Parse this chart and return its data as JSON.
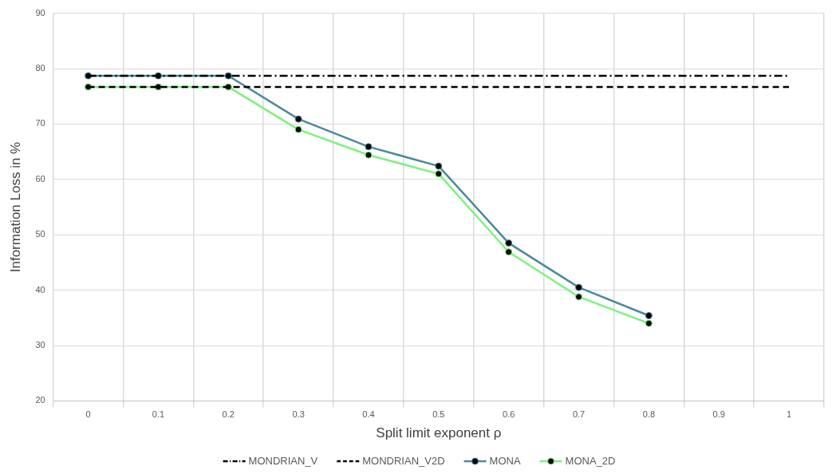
{
  "chart_data": {
    "type": "line",
    "xlabel": "Split limit exponent ρ",
    "ylabel": "Information Loss in %",
    "categories": [
      "0",
      "0.1",
      "0.2",
      "0.3",
      "0.4",
      "0.5",
      "0.6",
      "0.7",
      "0.8",
      "0.9",
      "1"
    ],
    "series": [
      {
        "name": "MONDRIAN_V",
        "color": "#000000",
        "line_style": "dashdot",
        "marker": "none",
        "values": [
          78.7,
          78.7,
          78.7,
          78.7,
          78.7,
          78.7,
          78.7,
          78.7,
          78.7,
          78.7,
          78.7
        ]
      },
      {
        "name": "MONDRIAN_V2D",
        "color": "#000000",
        "line_style": "dashed",
        "marker": "none",
        "values": [
          76.7,
          76.7,
          76.7,
          76.7,
          76.7,
          76.7,
          76.7,
          76.7,
          76.7,
          76.7,
          76.7
        ]
      },
      {
        "name": "MONA",
        "color": "#4a8a9c",
        "line_style": "solid",
        "marker": "circle",
        "values": [
          78.7,
          78.7,
          78.7,
          70.9,
          65.9,
          62.4,
          48.5,
          40.5,
          35.4,
          null,
          null
        ]
      },
      {
        "name": "MONA_2D",
        "color": "#7ef27e",
        "line_style": "solid",
        "marker": "circle",
        "values": [
          76.7,
          76.7,
          76.7,
          69.0,
          64.4,
          61.0,
          46.9,
          38.8,
          34.0,
          null,
          null
        ]
      }
    ],
    "ylim": [
      20,
      90
    ],
    "yticks": [
      20,
      30,
      40,
      50,
      60,
      70,
      80,
      90
    ],
    "grid": true,
    "legend": "bottom"
  }
}
